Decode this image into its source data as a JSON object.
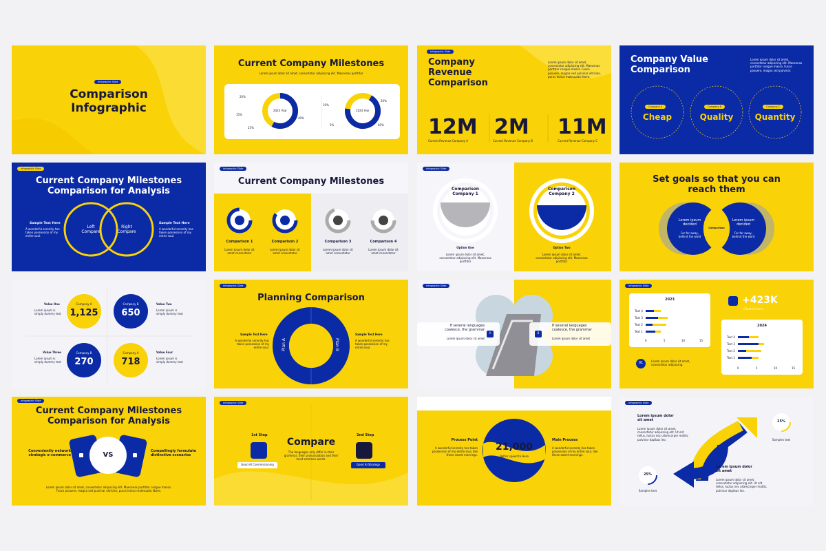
{
  "slides": [
    {
      "tag": "Infographic Slide",
      "title": "Comparison Infographic"
    },
    {
      "title": "Current Company Milestones",
      "subtitle": "Lorem ipsum dolor sit amet, consectetur adipiscing elit. Maecenas porttitor",
      "donuts": [
        {
          "label": "2023 Year",
          "percents": [
            "20%",
            "15%",
            "25%",
            "40%"
          ]
        },
        {
          "label": "2024 Year",
          "percents": [
            "10%",
            "5%",
            "20%",
            "60%"
          ]
        }
      ]
    },
    {
      "tag": "Infographic Slide",
      "title": "Company Revenue Comparison",
      "text": "Lorem ipsum dolor sit amet, consectetur adipiscing elit. Maecenas porttitor congue massa. Fusce posuere, magna sed pulvinar ultricies, purus lectus malesuada libero.",
      "stats": [
        {
          "value": "12M",
          "label": "Current Revenue Company A"
        },
        {
          "value": "2M",
          "label": "Current Revenue Company B"
        },
        {
          "value": "11M",
          "label": "Current Revenue Company C"
        }
      ]
    },
    {
      "title": "Company Value Comparison",
      "text": "Lorem ipsum dolor sit amet, consectetur adipiscing elit. Maecenas porttitor congue massa. Fusce posuere, magna sed pulvinar.",
      "items": [
        {
          "label": "Company A",
          "word": "Cheap"
        },
        {
          "label": "Company B",
          "word": "Quality"
        },
        {
          "label": "Company C",
          "word": "Quantity"
        }
      ]
    },
    {
      "tag": "Infographic Slide",
      "title": "Current Company Milestones Comparison for Analysis",
      "left": "Left Compare",
      "right": "Right Compare",
      "sides": [
        {
          "heading": "Sample Text Here",
          "text": "A wonderful serenity has taken possession of my entire soul."
        },
        {
          "heading": "Sample Text Here",
          "text": "A wonderful serenity has taken possession of my entire soul."
        }
      ]
    },
    {
      "tag": "Infographic Slide",
      "title": "Current Company Milestones",
      "items": [
        {
          "label": "Comparison 1",
          "text": "Lorem ipsum dolor sit amet consectetur"
        },
        {
          "label": "Comparison 2",
          "text": "Lorem ipsum dolor sit amet consectetur"
        },
        {
          "label": "Comparison 3",
          "text": "Lorem ipsum dolor sit amet consectetur"
        },
        {
          "label": "Comparison 4",
          "text": "Lorem ipsum dolor sit amet consectetur"
        }
      ]
    },
    {
      "tag": "Infographic Slide",
      "options": [
        {
          "title": "Comparison Company 1",
          "name": "Option One",
          "text": "Lorem ipsum dolor sit amet, consectetur adipiscing elit. Maecenas porttitor"
        },
        {
          "title": "Comparison Company 2",
          "name": "Option Two",
          "text": "Lorem ipsum dolor sit amet, consectetur adipiscing elit. Maecenas porttitor"
        }
      ]
    },
    {
      "title": "Set goals so that you can reach them",
      "center": "Comparison",
      "sides": [
        {
          "heading": "Lorem ipsum decided",
          "text": "For far away, behind the word"
        },
        {
          "heading": "Lorem ipsum decided",
          "text": "For far away, behind the word"
        }
      ]
    },
    {
      "items": [
        {
          "name": "Value One",
          "text": "Lorem ipsum is simply dummy text",
          "company": "Company A",
          "value": "1,125"
        },
        {
          "name": "Value Two",
          "text": "Lorem ipsum is simply dummy text",
          "company": "Company B",
          "value": "650"
        },
        {
          "name": "Value Three",
          "text": "Lorem ipsum is simply dummy text",
          "company": "Company B",
          "value": "270"
        },
        {
          "name": "Value Four",
          "text": "Lorem ipsum is simply dummy text",
          "company": "Company A",
          "value": "718"
        }
      ]
    },
    {
      "tag": "Infographic Slide",
      "title": "Planning Comparison",
      "plans": [
        "Plan A",
        "Plan B"
      ],
      "sides": [
        {
          "heading": "Sample Text Here",
          "text": "A wonderful serenity has taken possession of my entire soul."
        },
        {
          "heading": "Sample Text Here",
          "text": "A wonderful serenity has taken possession of my entire soul."
        }
      ]
    },
    {
      "tag": "Infographic Slide",
      "letters": [
        "A",
        "B"
      ],
      "sides": [
        {
          "heading": "If several languages coalesce, the grammar",
          "text": "Lorem ipsum dolor sit amet"
        },
        {
          "heading": "If several languages coalesce, the grammar",
          "text": "Lorem ipsum dolor sit amet"
        }
      ]
    },
    {
      "tag": "Infographic Slide",
      "charts": [
        {
          "title": "2023",
          "categories": [
            "Text 4",
            "Text 3",
            "Text 2",
            "Text 1"
          ],
          "ticks": [
            "0",
            "5",
            "10",
            "15"
          ]
        },
        {
          "title": "2024",
          "categories": [
            "Text 4",
            "Text 3",
            "Text 2",
            "Text 1"
          ],
          "ticks": [
            "0",
            "5",
            "10",
            "15"
          ]
        }
      ],
      "stat": "+423K",
      "stat_label": "Client & Users",
      "number": "01",
      "note": "Lorem ipsum dolor sit amet, consectetur adipiscing."
    },
    {
      "tag": "Infographic Slide",
      "title": "Current Company Milestones Comparison for Analysis",
      "left": "Conveniently network strategic e-commerce",
      "right": "Compellingly formulate distinctive scenarios",
      "vs": "VS",
      "text": "Lorem ipsum dolor sit amet, consectetur adipiscing elit. Maecenas porttitor congue massa. Fusce posuere, magna sed pulvinar ultricies, purus lectus malesuada libero."
    },
    {
      "tag": "Infographic Slide",
      "title": "Compare",
      "text": "The languages only differ in their grammar, their pronunciation and their most common words.",
      "steps": [
        {
          "name": "1st Step",
          "button": "Good AI Commissioning"
        },
        {
          "name": "2nd Step",
          "button": "Good AI Strategy"
        }
      ]
    },
    {
      "value": "21,000",
      "caption": "Better speed to Here",
      "sides": [
        {
          "heading": "Process Point",
          "text": "A wonderful serenity has taken possession of my entire soul, like these sweet mornings."
        },
        {
          "heading": "Main Process",
          "text": "A wonderful serenity has taken possession of my entire soul, like these sweet mornings."
        }
      ]
    },
    {
      "tag": "Infographic Slide",
      "blocks": [
        {
          "heading": "Lorem ipsum dolor sit amet",
          "text": "Lorem ipsum dolor sit amet, consectetur adipiscing elit. Ut elit tellus, luctus nec ullamcorper mattis, pulvinar dapibus leo."
        },
        {
          "heading": "Lorem ipsum dolor sit amet",
          "text": "Lorem ipsum dolor sit amet, consectetur adipiscing elit. Ut elit tellus, luctus nec ullamcorper mattis, pulvinar dapibus leo."
        }
      ],
      "gauges": [
        {
          "value": "25%",
          "label": "Samples text"
        },
        {
          "value": "25%",
          "label": "Samples text"
        }
      ]
    }
  ]
}
